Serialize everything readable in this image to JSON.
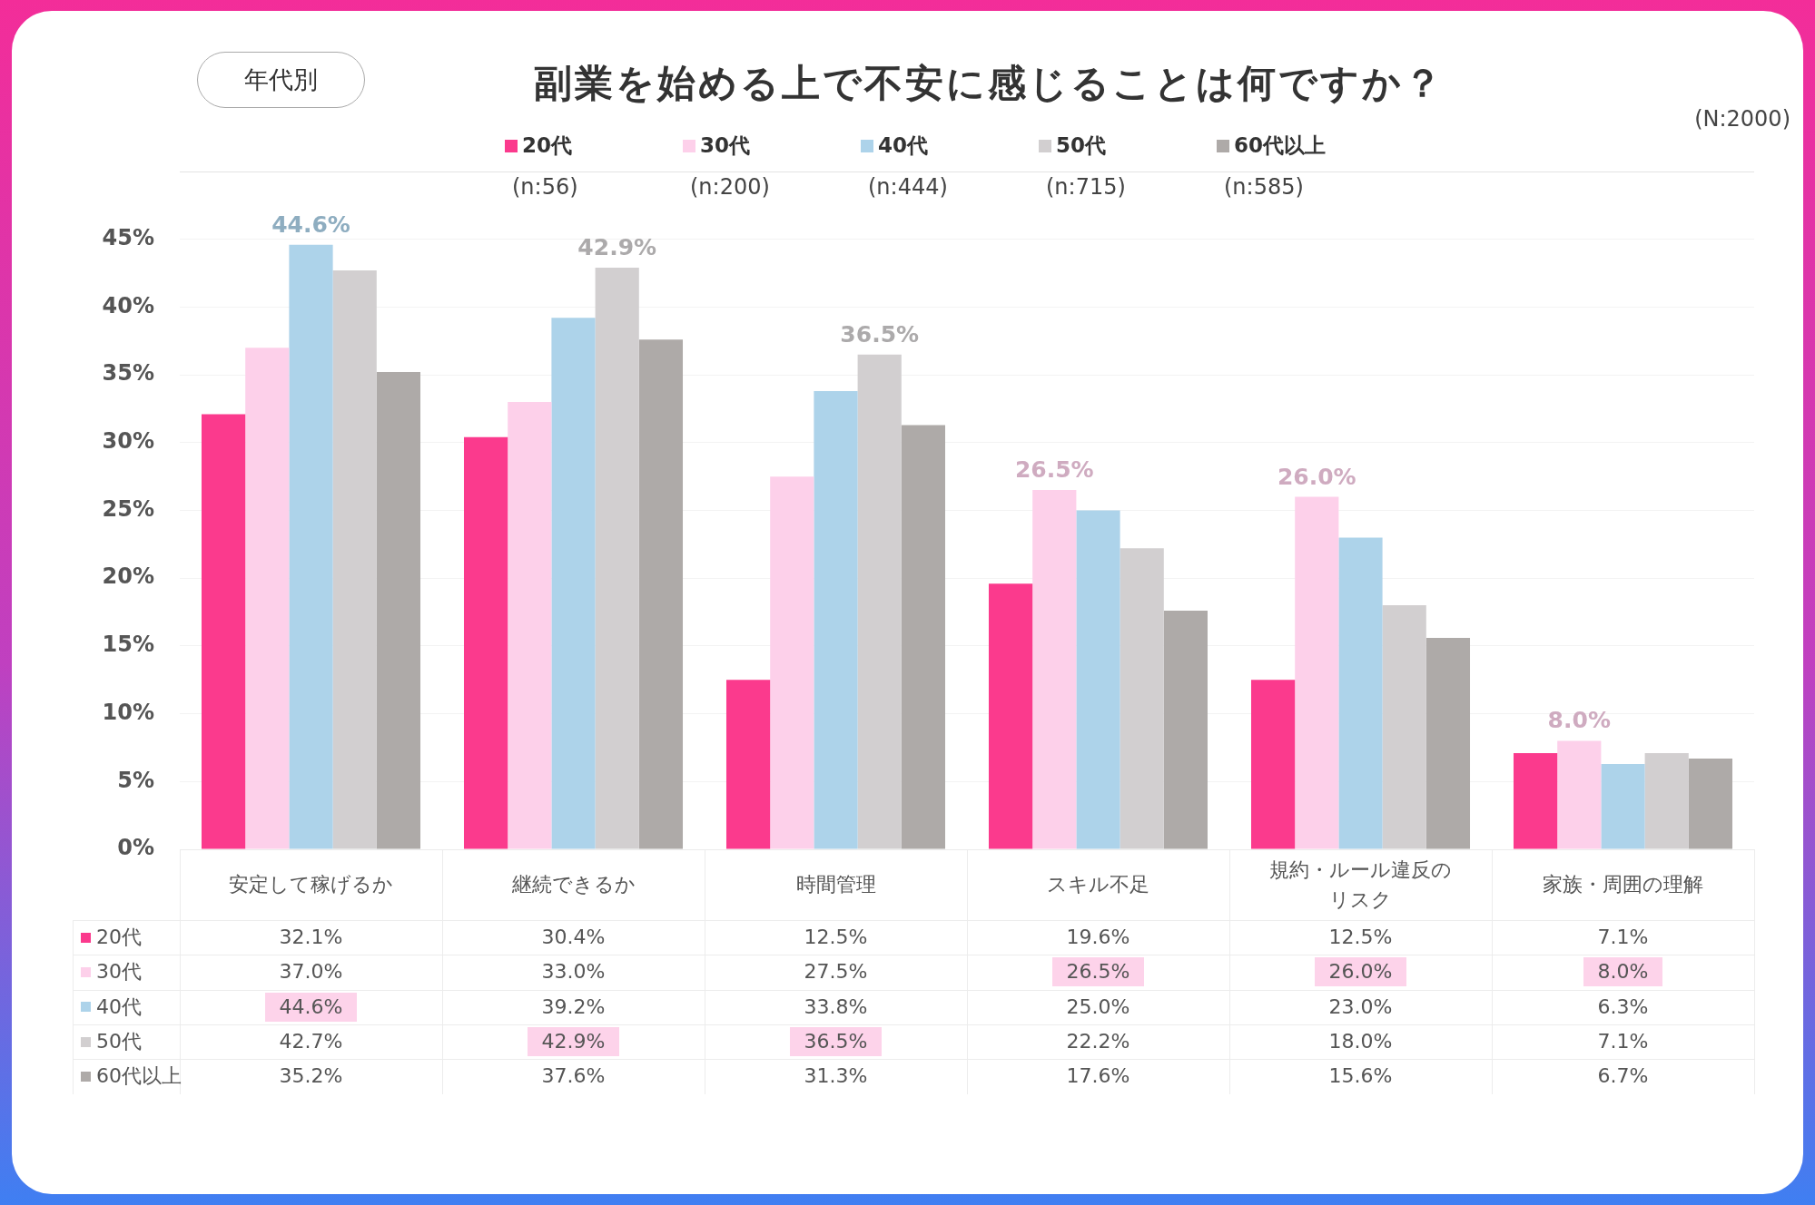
{
  "chart_data": {
    "type": "bar",
    "title": "副業を始める上で不安に感じることは何ですか？",
    "subtitle": "年代別",
    "categories": [
      "安定して稼げるか",
      "継続できるか",
      "時間管理",
      "スキル不足",
      "規約・ルール違反のリスク",
      "家族・周囲の理解"
    ],
    "series": [
      {
        "name": "20代",
        "color": "#fb3a8d",
        "values": [
          32.1,
          30.4,
          12.5,
          19.6,
          12.5,
          7.1
        ],
        "value_labels": [
          "32.1%",
          "30.4%",
          "12.5%",
          "19.6%",
          "12.5%",
          "7.1%"
        ]
      },
      {
        "name": "30代",
        "color": "#fdd0ea",
        "values": [
          37.0,
          33.0,
          27.5,
          26.5,
          26.0,
          8.0
        ],
        "value_labels": [
          "37.0%",
          "33.0%",
          "27.5%",
          "26.5%",
          "26.0%",
          "8.0%"
        ]
      },
      {
        "name": "40代",
        "color": "#add3ea",
        "values": [
          44.6,
          39.2,
          33.8,
          25.0,
          23.0,
          6.3
        ],
        "value_labels": [
          "44.6%",
          "39.2%",
          "33.8%",
          "25.0%",
          "23.0%",
          "6.3%"
        ]
      },
      {
        "name": "50代",
        "color": "#d2cfd0",
        "values": [
          42.7,
          42.9,
          36.5,
          22.2,
          18.0,
          7.1
        ],
        "value_labels": [
          "42.7%",
          "42.9%",
          "36.5%",
          "22.2%",
          "18.0%",
          "7.1%"
        ]
      },
      {
        "name": "60代以上",
        "color": "#aeaaa8",
        "values": [
          35.2,
          37.6,
          31.3,
          17.6,
          15.6,
          6.7
        ],
        "value_labels": [
          "35.2%",
          "37.6%",
          "31.3%",
          "17.6%",
          "15.6%",
          "6.7%"
        ]
      }
    ],
    "ylim": [
      0,
      50
    ],
    "yticks": [
      {
        "value": 0,
        "label": "0%"
      },
      {
        "value": 5,
        "label": "5%"
      },
      {
        "value": 10,
        "label": "10%"
      },
      {
        "value": 15,
        "label": "15%"
      },
      {
        "value": 20,
        "label": "20%"
      },
      {
        "value": 25,
        "label": "25%"
      },
      {
        "value": 30,
        "label": "30%"
      },
      {
        "value": 35,
        "label": "35%"
      },
      {
        "value": 40,
        "label": "40%"
      },
      {
        "value": 45,
        "label": "45%"
      },
      {
        "value": 50,
        "label": null
      }
    ],
    "grid": "y",
    "legend": "top",
    "annotations": [
      "(N:2000)",
      "(n:56)",
      "(n:200)",
      "(n:444)",
      "(n:715)",
      "(n:585)",
      "44.6%",
      "42.9%",
      "36.5%",
      "26.5%",
      "26.0%",
      "8.0%"
    ]
  }
}
